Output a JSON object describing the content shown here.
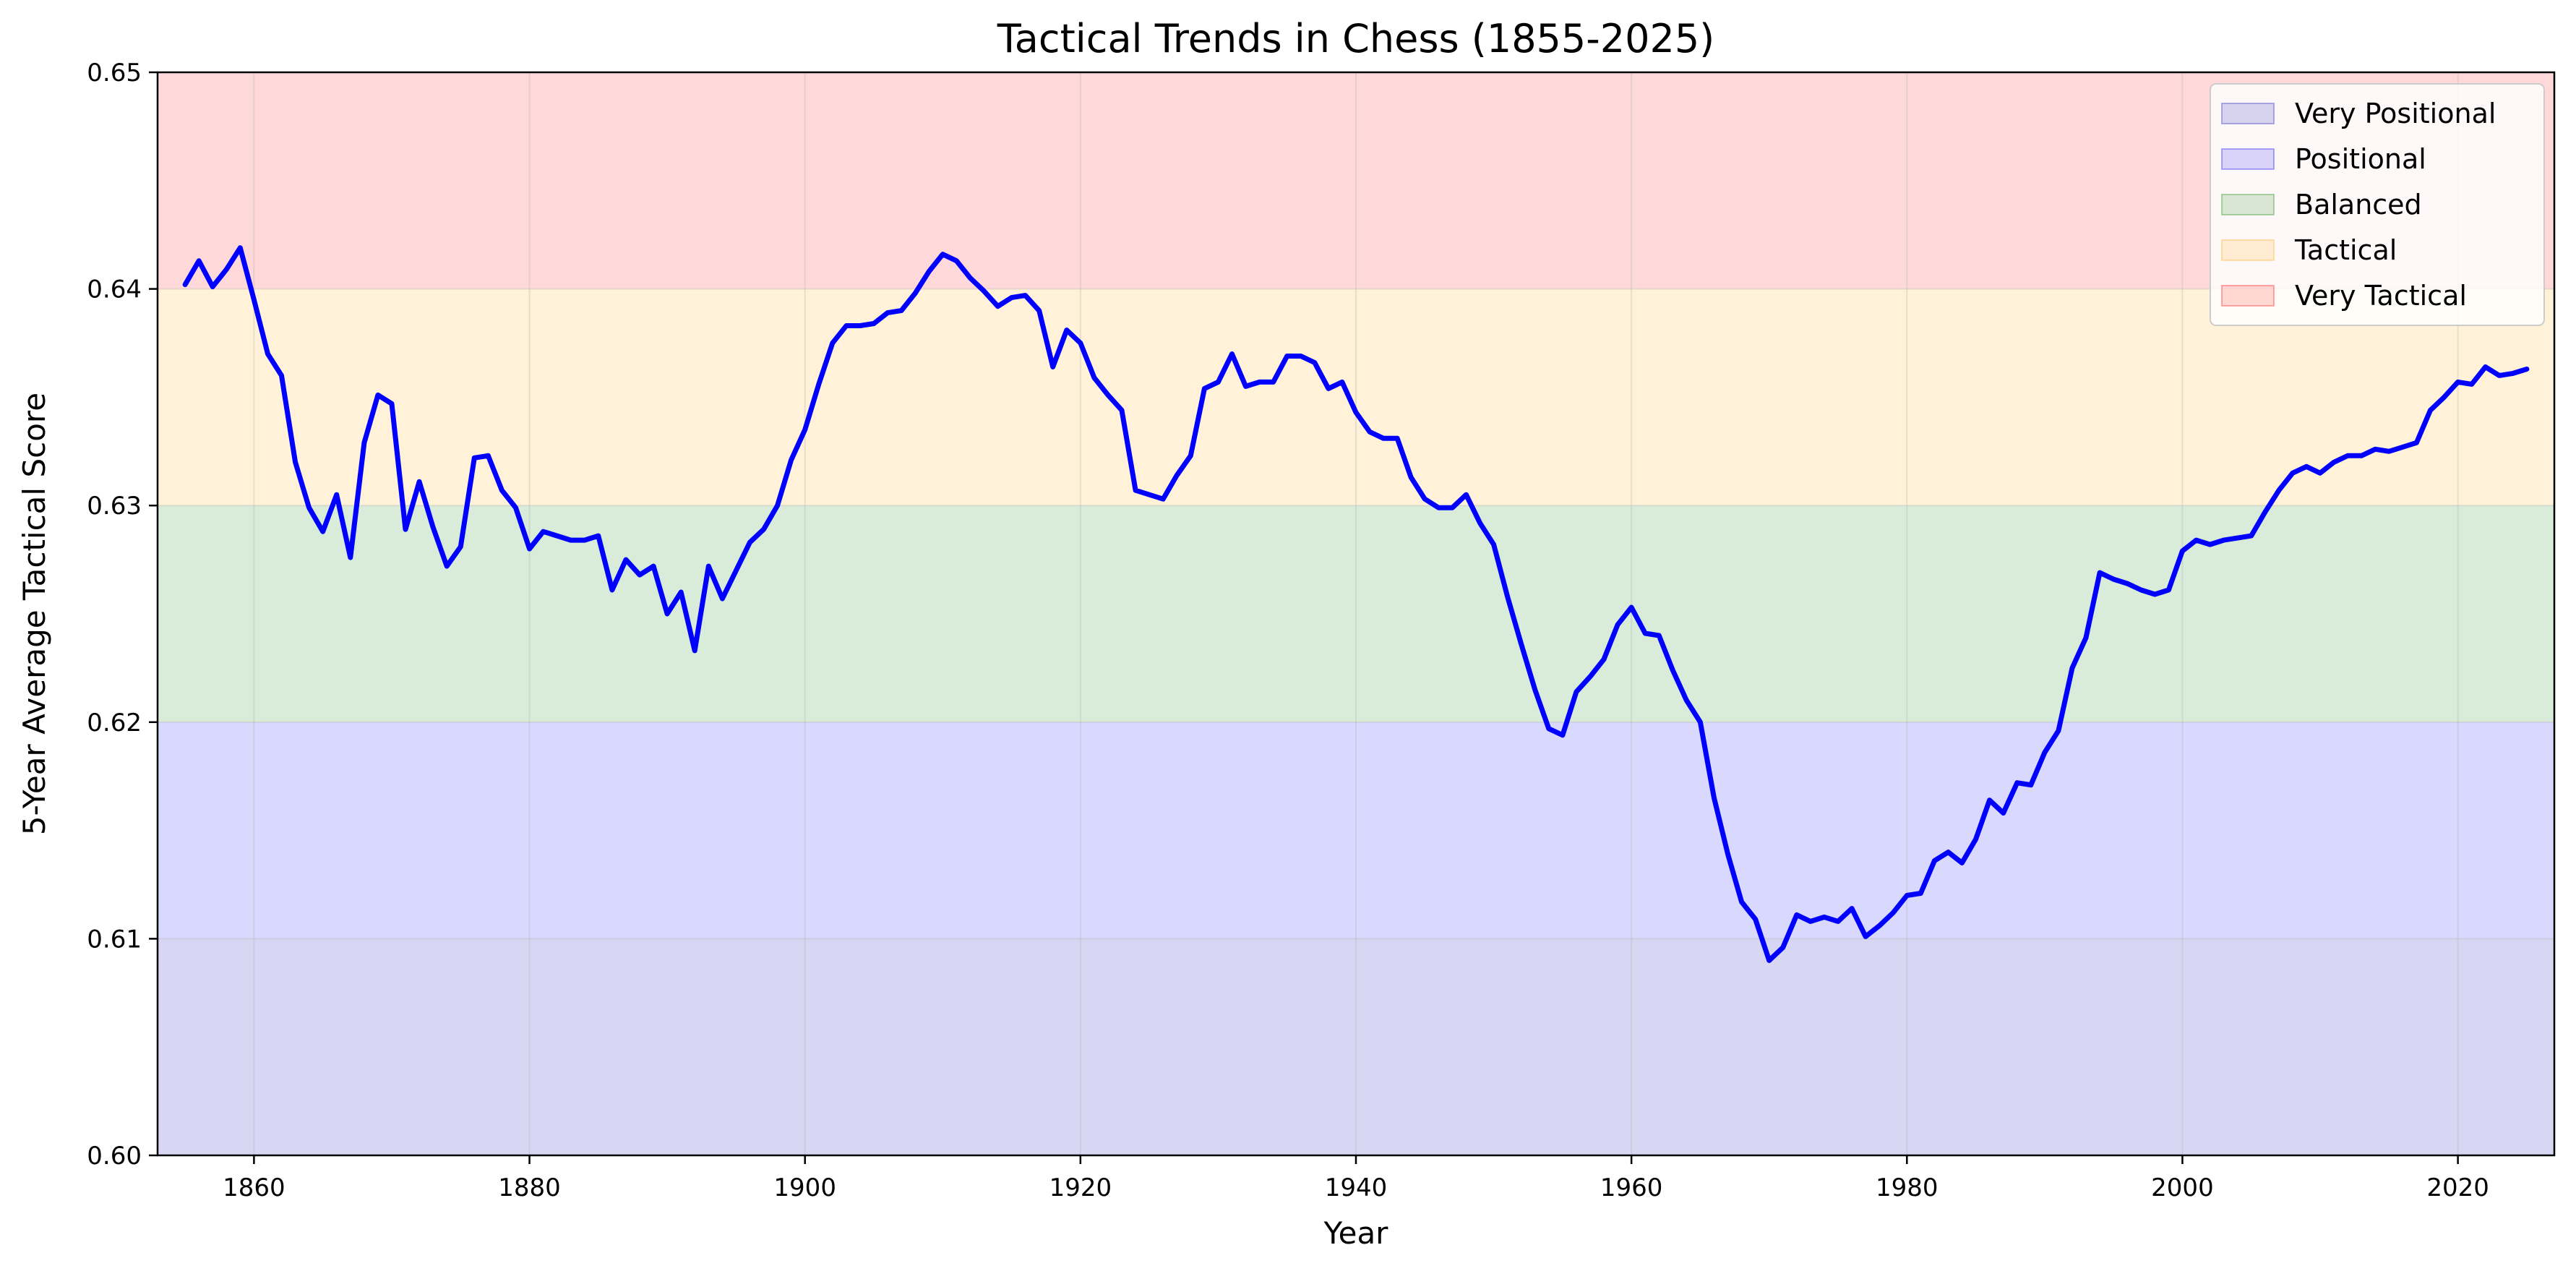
{
  "chart_data": {
    "type": "line",
    "title": "Tactical Trends in Chess (1855-2025)",
    "xlabel": "Year",
    "ylabel": "5-Year Average Tactical Score",
    "xlim": [
      1853,
      2027
    ],
    "ylim": [
      0.6,
      0.65
    ],
    "xticks": [
      1860,
      1880,
      1900,
      1920,
      1940,
      1960,
      1980,
      2000,
      2020
    ],
    "yticks": [
      0.6,
      0.61,
      0.62,
      0.63,
      0.64,
      0.65
    ],
    "xtick_labels": [
      "1860",
      "1880",
      "1900",
      "1920",
      "1940",
      "1960",
      "1980",
      "2000",
      "2020"
    ],
    "ytick_labels": [
      "0.60",
      "0.61",
      "0.62",
      "0.63",
      "0.64",
      "0.65"
    ],
    "grid": true,
    "legend_position": "top-right",
    "bands": [
      {
        "name": "Very Positional",
        "from": 0.6,
        "to": 0.61,
        "color": "#7a7ad6",
        "opacity": 0.3
      },
      {
        "name": "Positional",
        "from": 0.61,
        "to": 0.62,
        "color": "#0000ff",
        "opacity": 0.15
      },
      {
        "name": "Balanced",
        "from": 0.62,
        "to": 0.63,
        "color": "#008000",
        "opacity": 0.15
      },
      {
        "name": "Tactical",
        "from": 0.63,
        "to": 0.64,
        "color": "#ffa500",
        "opacity": 0.15
      },
      {
        "name": "Very Tactical",
        "from": 0.64,
        "to": 0.65,
        "color": "#ff0000",
        "opacity": 0.15
      }
    ],
    "series": [
      {
        "color": "#0000ff",
        "x": [
          1855,
          1856,
          1857,
          1858,
          1859,
          1860,
          1861,
          1862,
          1863,
          1864,
          1865,
          1866,
          1867,
          1868,
          1869,
          1870,
          1871,
          1872,
          1873,
          1874,
          1875,
          1876,
          1877,
          1878,
          1879,
          1880,
          1881,
          1882,
          1883,
          1884,
          1885,
          1886,
          1887,
          1888,
          1889,
          1890,
          1891,
          1892,
          1893,
          1894,
          1895,
          1896,
          1897,
          1898,
          1899,
          1900,
          1901,
          1902,
          1903,
          1904,
          1905,
          1906,
          1907,
          1908,
          1909,
          1910,
          1911,
          1912,
          1913,
          1914,
          1915,
          1916,
          1917,
          1918,
          1919,
          1920,
          1921,
          1922,
          1923,
          1924,
          1925,
          1926,
          1927,
          1928,
          1929,
          1930,
          1931,
          1932,
          1933,
          1934,
          1935,
          1936,
          1937,
          1938,
          1939,
          1940,
          1941,
          1942,
          1943,
          1944,
          1945,
          1946,
          1947,
          1948,
          1949,
          1950,
          1951,
          1952,
          1953,
          1954,
          1955,
          1956,
          1957,
          1958,
          1959,
          1960,
          1961,
          1962,
          1963,
          1964,
          1965,
          1966,
          1967,
          1968,
          1969,
          1970,
          1971,
          1972,
          1973,
          1974,
          1975,
          1976,
          1977,
          1978,
          1979,
          1980,
          1981,
          1982,
          1983,
          1984,
          1985,
          1986,
          1987,
          1988,
          1989,
          1990,
          1991,
          1992,
          1993,
          1994,
          1995,
          1996,
          1997,
          1998,
          1999,
          2000,
          2001,
          2002,
          2003,
          2004,
          2005,
          2006,
          2007,
          2008,
          2009,
          2010,
          2011,
          2012,
          2013,
          2014,
          2015,
          2016,
          2017,
          2018,
          2019,
          2020,
          2021,
          2022,
          2023,
          2024,
          2025
        ],
        "y": [
          0.6402,
          0.6413,
          0.6401,
          0.6409,
          0.6419,
          0.6395,
          0.637,
          0.636,
          0.632,
          0.6299,
          0.6288,
          0.6305,
          0.6276,
          0.6329,
          0.6351,
          0.6347,
          0.6289,
          0.6311,
          0.629,
          0.6272,
          0.6281,
          0.6322,
          0.6323,
          0.6307,
          0.6299,
          0.628,
          0.6288,
          0.6286,
          0.6284,
          0.6284,
          0.6286,
          0.6261,
          0.6275,
          0.6268,
          0.6272,
          0.625,
          0.626,
          0.6233,
          0.6272,
          0.6257,
          0.627,
          0.6283,
          0.6289,
          0.63,
          0.6321,
          0.6335,
          0.6356,
          0.6375,
          0.6383,
          0.6383,
          0.6384,
          0.6389,
          0.639,
          0.6398,
          0.6408,
          0.6416,
          0.6413,
          0.6405,
          0.6399,
          0.6392,
          0.6396,
          0.6397,
          0.639,
          0.6364,
          0.6381,
          0.6375,
          0.6359,
          0.6351,
          0.6344,
          0.6307,
          0.6305,
          0.6303,
          0.6314,
          0.6323,
          0.6354,
          0.6357,
          0.637,
          0.6355,
          0.6357,
          0.6357,
          0.6369,
          0.6369,
          0.6366,
          0.6354,
          0.6357,
          0.6343,
          0.6334,
          0.6331,
          0.6331,
          0.6313,
          0.6303,
          0.6299,
          0.6299,
          0.6305,
          0.6292,
          0.6282,
          0.6258,
          0.6236,
          0.6215,
          0.6197,
          0.6194,
          0.6214,
          0.6221,
          0.6229,
          0.6245,
          0.6253,
          0.6241,
          0.624,
          0.6224,
          0.621,
          0.62,
          0.6165,
          0.6139,
          0.6117,
          0.6109,
          0.609,
          0.6096,
          0.6111,
          0.6108,
          0.611,
          0.6108,
          0.6114,
          0.6101,
          0.6106,
          0.6112,
          0.612,
          0.6121,
          0.6136,
          0.614,
          0.6135,
          0.6146,
          0.6164,
          0.6158,
          0.6172,
          0.6171,
          0.6186,
          0.6196,
          0.6225,
          0.6239,
          0.6269,
          0.6266,
          0.6264,
          0.6261,
          0.6259,
          0.6261,
          0.6279,
          0.6284,
          0.6282,
          0.6284,
          0.6285,
          0.6286,
          0.6297,
          0.6307,
          0.6315,
          0.6318,
          0.6315,
          0.632,
          0.6323,
          0.6323,
          0.6326,
          0.6325,
          0.6327,
          0.6329,
          0.6344,
          0.635,
          0.6357,
          0.6356,
          0.6364,
          0.636,
          0.6361,
          0.6363
        ]
      }
    ]
  }
}
